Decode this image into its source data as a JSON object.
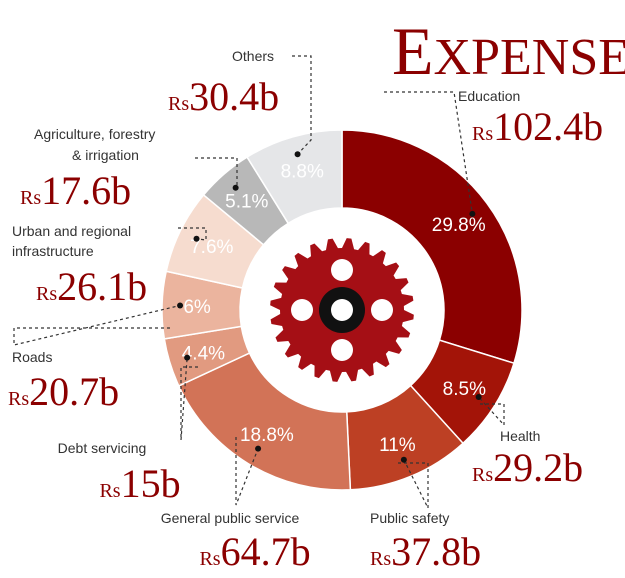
{
  "title_first": "E",
  "title_rest": "XPENSES",
  "currency": "Rs",
  "colors": {
    "accent": "#8b0000",
    "gear": "#a50f15",
    "hole": "#ffffff"
  },
  "chart_data": {
    "type": "pie",
    "variant": "donut",
    "title": "Expenses",
    "categories": [
      "Education",
      "Health",
      "Public safety",
      "General public service",
      "Debt servicing",
      "Roads",
      "Urban and regional infrastructure",
      "Agriculture, forestry & irrigation",
      "Others"
    ],
    "values": [
      102.4,
      29.2,
      37.8,
      64.7,
      15,
      20.7,
      26.1,
      17.6,
      30.4
    ],
    "amount_labels": [
      "102.4b",
      "29.2b",
      "37.8b",
      "64.7b",
      "15b",
      "20.7b",
      "26.1b",
      "17.6b",
      "30.4b"
    ],
    "percent_labels": [
      "29.8%",
      "8.5%",
      "11%",
      "18.8%",
      "4.4%",
      "6%",
      "7.6%",
      "5.1%",
      "8.8%"
    ],
    "colors": [
      "#8b0000",
      "#a31408",
      "#bd4024",
      "#d27357",
      "#e19a80",
      "#ebb49e",
      "#f6dccf",
      "#b8b8b8",
      "#e5e6e8"
    ]
  }
}
